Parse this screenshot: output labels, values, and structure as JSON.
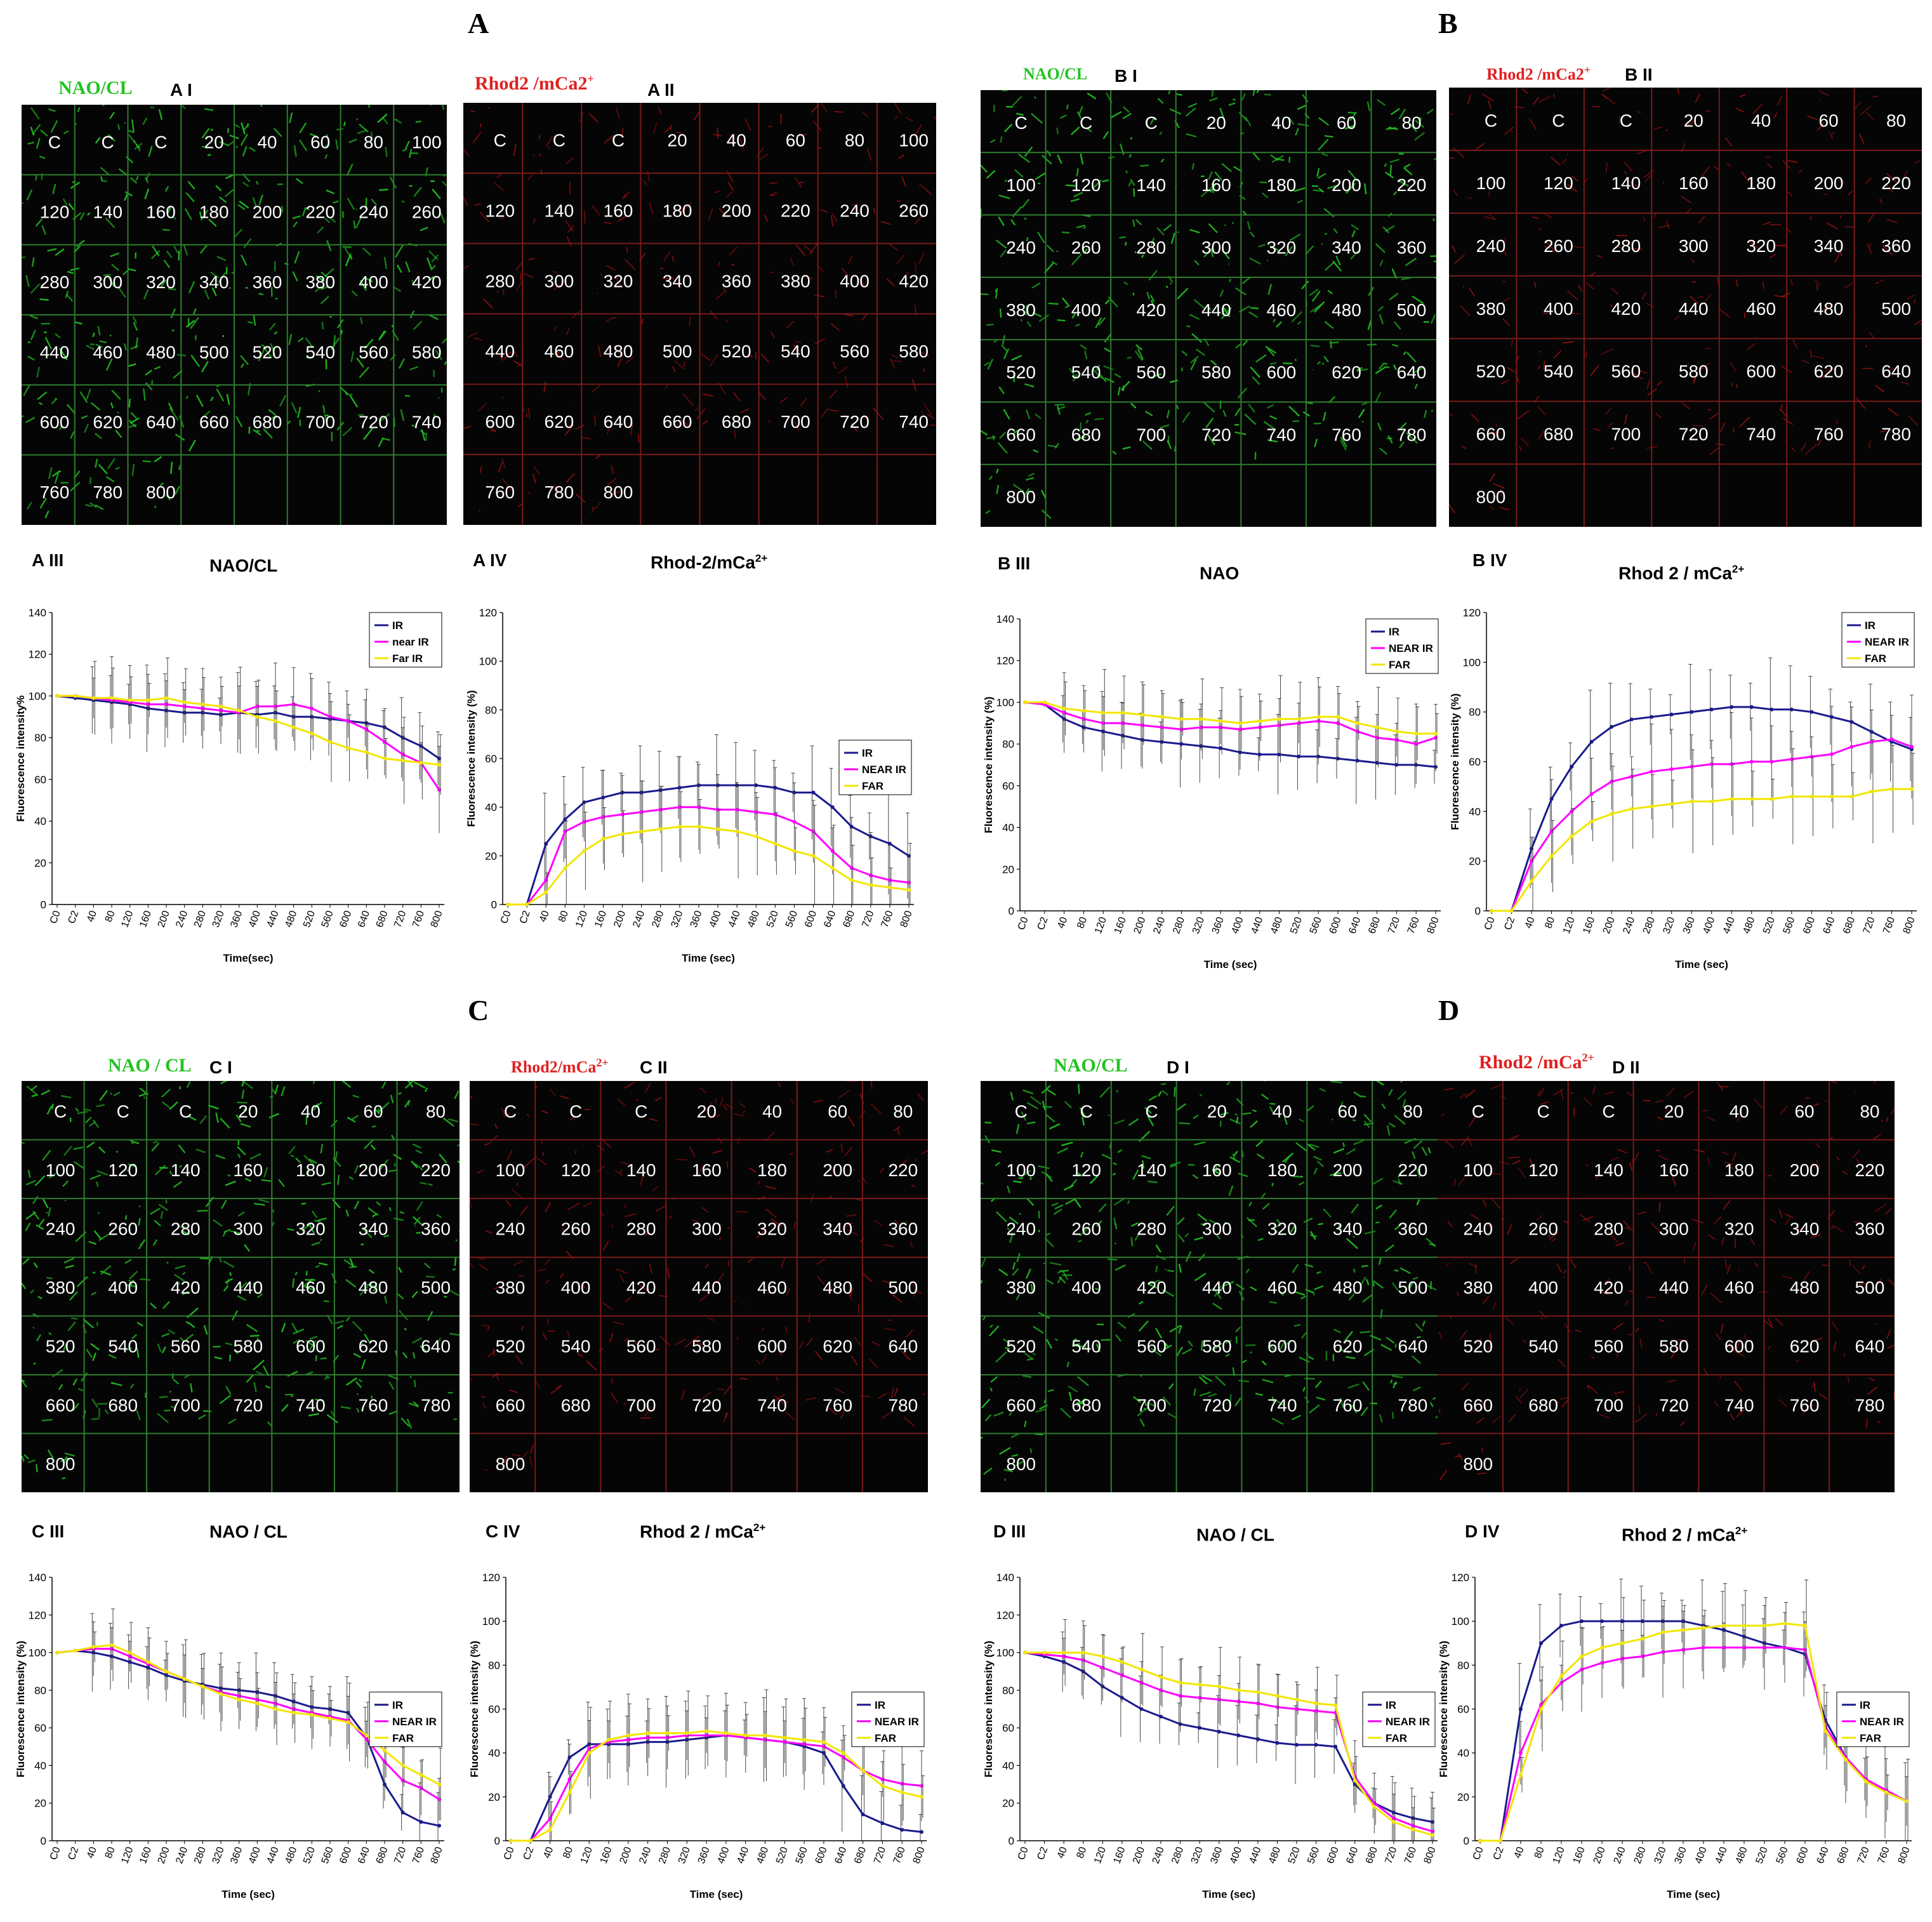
{
  "panel_letters": [
    "A",
    "B",
    "C",
    "D"
  ],
  "time_labels": [
    "C",
    "C",
    "C",
    "20",
    "40",
    "60",
    "80",
    "100",
    "120",
    "140",
    "160",
    "180",
    "200",
    "220",
    "240",
    "260",
    "280",
    "300",
    "320",
    "340",
    "360",
    "380",
    "400",
    "420",
    "440",
    "460",
    "480",
    "500",
    "520",
    "540",
    "560",
    "580",
    "600",
    "620",
    "640",
    "660",
    "680",
    "700",
    "720",
    "740",
    "760",
    "780",
    "800"
  ],
  "x_tick_labels": [
    "C0",
    "C2",
    "40",
    "80",
    "120",
    "160",
    "200",
    "240",
    "280",
    "320",
    "360",
    "400",
    "440",
    "480",
    "520",
    "560",
    "600",
    "640",
    "680",
    "720",
    "760",
    "800"
  ],
  "montages": [
    {
      "label": "NAO/CL",
      "sublabel": "A I",
      "channel": "green",
      "cols": 8
    },
    {
      "label": "Rhod2 /mCa2",
      "sup": "+",
      "sublabel": "A II",
      "channel": "red",
      "cols": 8
    },
    {
      "label": "NAO/CL",
      "sublabel": "B I",
      "channel": "green",
      "cols": 7
    },
    {
      "label": "Rhod2 /mCa2",
      "sup": "+",
      "sublabel": "B II",
      "channel": "red",
      "cols": 7
    },
    {
      "label": "NAO / CL",
      "sublabel": "C I",
      "channel": "green",
      "cols": 7
    },
    {
      "label": "Rhod2/mCa",
      "sup": "2+",
      "sublabel": "C II",
      "channel": "red",
      "cols": 7
    },
    {
      "label": "NAO/CL",
      "sublabel": "D I",
      "channel": "green",
      "cols": 7
    },
    {
      "label": "Rhod2 /mCa",
      "sup": "2+",
      "sublabel": "D II",
      "channel": "red",
      "cols": 7
    }
  ],
  "colors": {
    "IR": "#1a1a8c",
    "NEAR_IR": "#ff00ff",
    "FAR": "#ffff00",
    "green_channel": "#22c322",
    "red_channel": "#a01010"
  },
  "chart_data": [
    {
      "type": "line",
      "panel": "A III",
      "title": "NAO/CL",
      "sup": "",
      "xlabel": "Time(sec)",
      "ylabel": "Fluorescence intensity%",
      "ylim": [
        0,
        140
      ],
      "yticks": [
        0,
        20,
        40,
        60,
        80,
        100,
        120,
        140
      ],
      "legend": [
        "IR",
        "near IR",
        "Far IR"
      ],
      "legend_position": "top-right",
      "series": [
        {
          "name": "IR",
          "values": [
            100,
            99,
            98,
            97,
            96,
            94,
            93,
            92,
            92,
            91,
            92,
            91,
            92,
            90,
            90,
            89,
            88,
            87,
            85,
            80,
            76,
            70
          ]
        },
        {
          "name": "near IR",
          "values": [
            100,
            100,
            99,
            98,
            97,
            96,
            96,
            95,
            94,
            93,
            92,
            95,
            95,
            96,
            94,
            90,
            88,
            84,
            78,
            72,
            68,
            55
          ]
        },
        {
          "name": "Far IR",
          "values": [
            100,
            100,
            99,
            99,
            98,
            98,
            99,
            97,
            96,
            95,
            93,
            90,
            88,
            85,
            82,
            78,
            75,
            73,
            70,
            69,
            68,
            67
          ]
        }
      ]
    },
    {
      "type": "line",
      "panel": "A IV",
      "title": "Rhod-2/mCa",
      "sup": "2+",
      "xlabel": "Time (sec)",
      "ylabel": "Fluorescence intensity (%)",
      "ylim": [
        0,
        120
      ],
      "yticks": [
        0,
        20,
        40,
        60,
        80,
        100,
        120
      ],
      "legend": [
        "IR",
        "NEAR IR",
        "FAR"
      ],
      "legend_position": "right",
      "series": [
        {
          "name": "IR",
          "values": [
            0,
            0,
            25,
            35,
            42,
            44,
            46,
            46,
            47,
            48,
            49,
            49,
            49,
            49,
            48,
            46,
            46,
            40,
            32,
            28,
            25,
            20
          ]
        },
        {
          "name": "NEAR IR",
          "values": [
            0,
            0,
            10,
            30,
            34,
            36,
            37,
            38,
            39,
            40,
            40,
            39,
            39,
            38,
            37,
            34,
            30,
            22,
            15,
            12,
            10,
            9
          ]
        },
        {
          "name": "FAR",
          "values": [
            0,
            0,
            5,
            15,
            22,
            27,
            29,
            30,
            31,
            32,
            32,
            31,
            30,
            28,
            25,
            22,
            20,
            15,
            10,
            8,
            7,
            6
          ]
        }
      ]
    },
    {
      "type": "line",
      "panel": "B III",
      "title": "NAO",
      "sup": "",
      "xlabel": "Time (sec)",
      "ylabel": "Fluorescence intensity (%)",
      "ylim": [
        0,
        140
      ],
      "yticks": [
        0,
        20,
        40,
        60,
        80,
        100,
        120,
        140
      ],
      "legend": [
        "IR",
        "NEAR IR",
        "FAR"
      ],
      "legend_position": "top-right",
      "series": [
        {
          "name": "IR",
          "values": [
            100,
            99,
            92,
            88,
            86,
            84,
            82,
            81,
            80,
            79,
            78,
            76,
            75,
            75,
            74,
            74,
            73,
            72,
            71,
            70,
            70,
            69
          ]
        },
        {
          "name": "NEAR IR",
          "values": [
            100,
            99,
            95,
            92,
            90,
            90,
            89,
            88,
            87,
            88,
            88,
            87,
            88,
            89,
            90,
            91,
            90,
            86,
            83,
            82,
            80,
            83
          ]
        },
        {
          "name": "FAR",
          "values": [
            100,
            100,
            97,
            96,
            95,
            95,
            94,
            93,
            92,
            92,
            91,
            90,
            91,
            92,
            92,
            93,
            93,
            90,
            88,
            86,
            85,
            85
          ]
        }
      ]
    },
    {
      "type": "line",
      "panel": "B IV",
      "title": "Rhod 2 / mCa",
      "sup": "2+",
      "xlabel": "Time (sec)",
      "ylabel": "Fluorescence intensity (%)",
      "ylim": [
        0,
        120
      ],
      "yticks": [
        0,
        20,
        40,
        60,
        80,
        100,
        120
      ],
      "legend": [
        "IR",
        "NEAR IR",
        "FAR"
      ],
      "legend_position": "top-right",
      "series": [
        {
          "name": "IR",
          "values": [
            0,
            0,
            25,
            45,
            58,
            68,
            74,
            77,
            78,
            79,
            80,
            81,
            82,
            82,
            81,
            81,
            80,
            78,
            76,
            72,
            68,
            65
          ]
        },
        {
          "name": "NEAR IR",
          "values": [
            0,
            0,
            20,
            32,
            40,
            47,
            52,
            54,
            56,
            57,
            58,
            59,
            59,
            60,
            60,
            61,
            62,
            63,
            66,
            68,
            69,
            66
          ]
        },
        {
          "name": "FAR",
          "values": [
            0,
            0,
            12,
            22,
            30,
            36,
            39,
            41,
            42,
            43,
            44,
            44,
            45,
            45,
            45,
            46,
            46,
            46,
            46,
            48,
            49,
            49
          ]
        }
      ]
    },
    {
      "type": "line",
      "panel": "C III",
      "title": "NAO / CL",
      "sup": "",
      "xlabel": "Time (sec)",
      "ylabel": "Fluorescence intensity (%)",
      "ylim": [
        0,
        140
      ],
      "yticks": [
        0,
        20,
        40,
        60,
        80,
        100,
        120,
        140
      ],
      "legend": [
        "IR",
        "NEAR IR",
        "FAR"
      ],
      "legend_position": "right",
      "series": [
        {
          "name": "IR",
          "values": [
            100,
            101,
            100,
            98,
            95,
            92,
            88,
            85,
            83,
            81,
            80,
            79,
            77,
            74,
            71,
            70,
            68,
            55,
            30,
            15,
            10,
            8
          ]
        },
        {
          "name": "NEAR IR",
          "values": [
            100,
            101,
            102,
            102,
            98,
            94,
            90,
            86,
            82,
            79,
            77,
            75,
            73,
            70,
            68,
            66,
            64,
            54,
            42,
            32,
            28,
            22
          ]
        },
        {
          "name": "FAR",
          "values": [
            100,
            101,
            103,
            104,
            100,
            95,
            90,
            86,
            82,
            78,
            75,
            73,
            70,
            68,
            67,
            65,
            63,
            56,
            48,
            40,
            35,
            30
          ]
        }
      ]
    },
    {
      "type": "line",
      "panel": "C IV",
      "title": "Rhod 2 / mCa",
      "sup": "2+",
      "xlabel": "Time (sec)",
      "ylabel": "Fluorescence intensity (%)",
      "ylim": [
        0,
        120
      ],
      "yticks": [
        0,
        20,
        40,
        60,
        80,
        100,
        120
      ],
      "legend": [
        "IR",
        "NEAR IR",
        "FAR"
      ],
      "legend_position": "right",
      "series": [
        {
          "name": "IR",
          "values": [
            0,
            0,
            20,
            38,
            44,
            44,
            44,
            45,
            45,
            46,
            47,
            48,
            47,
            46,
            45,
            43,
            40,
            25,
            12,
            8,
            5,
            4
          ]
        },
        {
          "name": "NEAR IR",
          "values": [
            0,
            0,
            10,
            28,
            42,
            45,
            46,
            47,
            47,
            48,
            48,
            48,
            47,
            46,
            45,
            44,
            43,
            38,
            32,
            28,
            26,
            25
          ]
        },
        {
          "name": "FAR",
          "values": [
            0,
            0,
            5,
            22,
            40,
            46,
            48,
            49,
            49,
            49,
            50,
            49,
            48,
            48,
            47,
            46,
            45,
            40,
            32,
            25,
            22,
            20
          ]
        }
      ]
    },
    {
      "type": "line",
      "panel": "D III",
      "title": "NAO / CL",
      "sup": "",
      "xlabel": "Time (sec)",
      "ylabel": "Fluorescence intensity (%)",
      "ylim": [
        0,
        140
      ],
      "yticks": [
        0,
        20,
        40,
        60,
        80,
        100,
        120,
        140
      ],
      "legend": [
        "IR",
        "NEAR IR",
        "FAR"
      ],
      "legend_position": "right",
      "series": [
        {
          "name": "IR",
          "values": [
            100,
            98,
            95,
            90,
            82,
            76,
            70,
            66,
            62,
            60,
            58,
            56,
            54,
            52,
            51,
            51,
            50,
            30,
            20,
            15,
            12,
            10
          ]
        },
        {
          "name": "NEAR IR",
          "values": [
            100,
            99,
            98,
            96,
            92,
            88,
            84,
            80,
            77,
            76,
            75,
            74,
            73,
            71,
            70,
            69,
            68,
            34,
            20,
            12,
            8,
            5
          ]
        },
        {
          "name": "FAR",
          "values": [
            100,
            100,
            100,
            100,
            98,
            95,
            91,
            87,
            84,
            83,
            82,
            80,
            79,
            77,
            75,
            73,
            72,
            32,
            18,
            10,
            6,
            3
          ]
        }
      ]
    },
    {
      "type": "line",
      "panel": "D IV",
      "title": "Rhod 2 / mCa",
      "sup": "2+",
      "xlabel": "Time (sec)",
      "ylabel": "Fluorescence intensity (%)",
      "ylim": [
        0,
        120
      ],
      "yticks": [
        0,
        20,
        40,
        60,
        80,
        100,
        120
      ],
      "legend": [
        "IR",
        "NEAR IR",
        "FAR"
      ],
      "legend_position": "right",
      "series": [
        {
          "name": "IR",
          "values": [
            0,
            0,
            60,
            90,
            98,
            100,
            100,
            100,
            100,
            100,
            100,
            98,
            96,
            93,
            90,
            88,
            85,
            55,
            38,
            28,
            22,
            18
          ]
        },
        {
          "name": "NEAR IR",
          "values": [
            0,
            0,
            40,
            62,
            72,
            78,
            81,
            83,
            84,
            86,
            87,
            88,
            88,
            88,
            88,
            88,
            87,
            52,
            38,
            28,
            23,
            18
          ]
        },
        {
          "name": "FAR",
          "values": [
            0,
            0,
            30,
            60,
            75,
            84,
            88,
            90,
            92,
            95,
            96,
            97,
            98,
            98,
            98,
            99,
            98,
            50,
            37,
            27,
            22,
            18
          ]
        }
      ]
    }
  ]
}
